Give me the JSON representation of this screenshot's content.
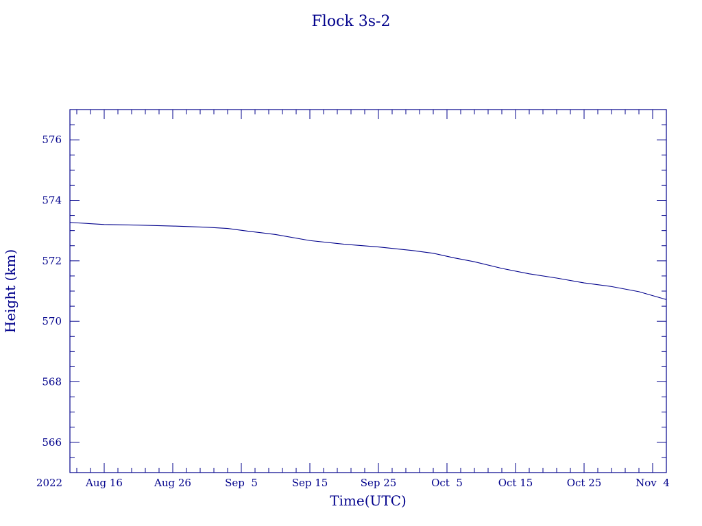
{
  "chart_data": {
    "type": "line",
    "title": "Flock 3s-2",
    "xlabel": "Time(UTC)",
    "ylabel": "Height (km)",
    "x_start_label": "2022",
    "xlim": [
      "2022-08-11",
      "2022-11-06"
    ],
    "ylim": [
      565,
      577
    ],
    "x_ticks": [
      {
        "date": "2022-08-16",
        "label": "Aug 16"
      },
      {
        "date": "2022-08-26",
        "label": "Aug 26"
      },
      {
        "date": "2022-09-05",
        "label": "Sep  5"
      },
      {
        "date": "2022-09-15",
        "label": "Sep 15"
      },
      {
        "date": "2022-09-25",
        "label": "Sep 25"
      },
      {
        "date": "2022-10-05",
        "label": "Oct  5"
      },
      {
        "date": "2022-10-15",
        "label": "Oct 15"
      },
      {
        "date": "2022-10-25",
        "label": "Oct 25"
      },
      {
        "date": "2022-11-04",
        "label": "Nov  4"
      }
    ],
    "y_ticks": [
      566,
      568,
      570,
      572,
      574,
      576
    ],
    "series": [
      {
        "color": "#00008b",
        "x": [
          "2022-08-11",
          "2022-08-16",
          "2022-08-21",
          "2022-08-26",
          "2022-08-31",
          "2022-09-03",
          "2022-09-06",
          "2022-09-10",
          "2022-09-15",
          "2022-09-20",
          "2022-09-25",
          "2022-09-30",
          "2022-10-03",
          "2022-10-06",
          "2022-10-09",
          "2022-10-13",
          "2022-10-17",
          "2022-10-21",
          "2022-10-25",
          "2022-10-29",
          "2022-11-02",
          "2022-11-06"
        ],
        "y": [
          573.27,
          573.2,
          573.18,
          573.15,
          573.11,
          573.07,
          572.98,
          572.87,
          572.67,
          572.55,
          572.46,
          572.34,
          572.25,
          572.1,
          571.97,
          571.75,
          571.57,
          571.43,
          571.27,
          571.15,
          570.98,
          570.72
        ]
      }
    ]
  }
}
